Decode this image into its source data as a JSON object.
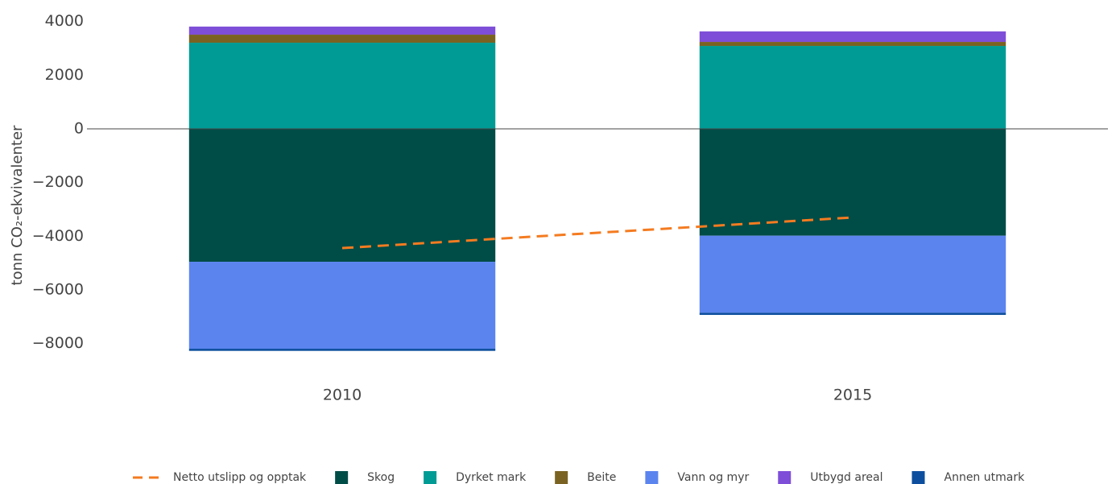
{
  "chart_data": {
    "type": "bar",
    "stacked": true,
    "y_label": "tonn CO₂-ekvivalenter",
    "categories": [
      "2010",
      "2015"
    ],
    "ylim": [
      -8600,
      4300
    ],
    "yticks": [
      {
        "value": 4000,
        "label": "4000"
      },
      {
        "value": 2000,
        "label": "2000"
      },
      {
        "value": 0,
        "label": "0"
      },
      {
        "value": -2000,
        "label": "−2000"
      },
      {
        "value": -4000,
        "label": "−4000"
      },
      {
        "value": -6000,
        "label": "−6000"
      },
      {
        "value": -8000,
        "label": "−8000"
      }
    ],
    "zero_line": true,
    "legend": "bottom",
    "series": [
      {
        "name": "Netto utslipp og opptak",
        "type": "line",
        "dashed": true,
        "color": "#f47b20",
        "values": [
          -4440,
          -3300
        ]
      },
      {
        "name": "Skog",
        "color": "#004c47",
        "values": [
          -4950,
          -3980
        ]
      },
      {
        "name": "Dyrket mark",
        "color": "#009b94",
        "values": [
          3210,
          3090
        ]
      },
      {
        "name": "Beite",
        "color": "#7a6322",
        "values": [
          300,
          150
        ]
      },
      {
        "name": "Vann og myr",
        "color": "#5b84ef",
        "values": [
          -3240,
          -2870
        ]
      },
      {
        "name": "Utbygd areal",
        "color": "#7e4ed8",
        "values": [
          300,
          390
        ]
      },
      {
        "name": "Annen utmark",
        "color": "#0d4f9e",
        "values": [
          -80,
          -80
        ]
      }
    ]
  }
}
